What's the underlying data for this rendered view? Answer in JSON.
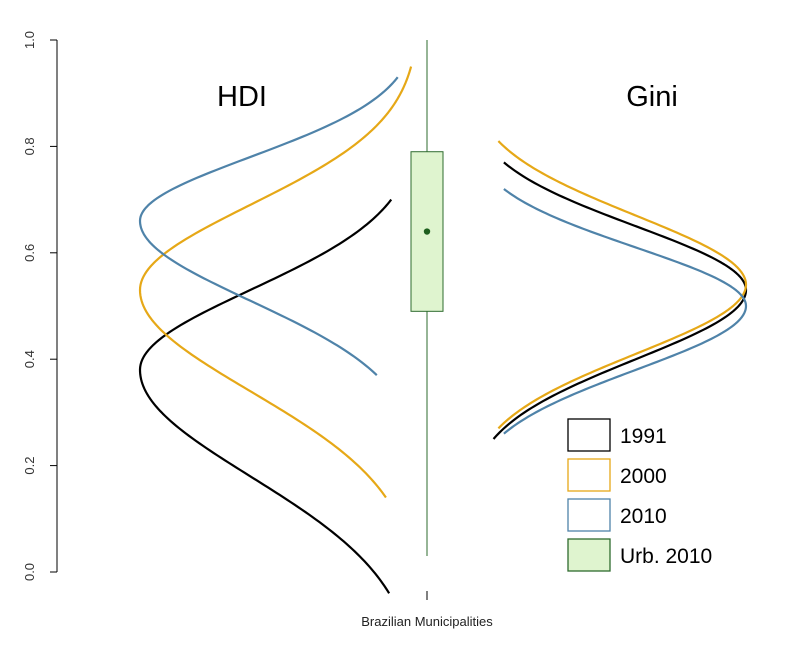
{
  "chart_data": {
    "type": "density-violin",
    "xlabel": "Brazilian Municipalities",
    "ylabel": "",
    "ylim": [
      0.0,
      1.0
    ],
    "yticks": [
      "0.0",
      "0.2",
      "0.4",
      "0.6",
      "0.8",
      "1.0"
    ],
    "panels": [
      {
        "name": "HDI",
        "side": "left",
        "series": [
          {
            "name": "1991",
            "color": "#000000",
            "mode": 0.38,
            "sd_lower": 0.2,
            "sd_upper": 0.15,
            "y_min": -0.04,
            "y_max": 0.7
          },
          {
            "name": "2000",
            "color": "#E6A817",
            "mode": 0.53,
            "sd_lower": 0.19,
            "sd_upper": 0.16,
            "y_min": 0.14,
            "y_max": 0.95
          },
          {
            "name": "2010",
            "color": "#4F83A9",
            "mode": 0.66,
            "sd_lower": 0.15,
            "sd_upper": 0.12,
            "y_min": 0.37,
            "y_max": 0.93
          }
        ]
      },
      {
        "name": "Gini",
        "side": "right",
        "series": [
          {
            "name": "1991",
            "color": "#000000",
            "mode": 0.53,
            "sd_lower": 0.13,
            "sd_upper": 0.12,
            "y_min": 0.25,
            "y_max": 0.77
          },
          {
            "name": "2000",
            "color": "#E6A817",
            "mode": 0.54,
            "sd_lower": 0.13,
            "sd_upper": 0.13,
            "y_min": 0.27,
            "y_max": 0.81
          },
          {
            "name": "2010",
            "color": "#4F83A9",
            "mode": 0.5,
            "sd_lower": 0.12,
            "sd_upper": 0.11,
            "y_min": 0.26,
            "y_max": 0.72
          }
        ]
      }
    ],
    "boxplot": {
      "name": "Urb. 2010",
      "fill": "#DFF4CF",
      "stroke": "#2E6B2E",
      "whisker_low": 0.03,
      "q1": 0.49,
      "median": 0.64,
      "q3": 0.79,
      "whisker_high": 1.0
    },
    "legend": {
      "position": "bottom-right",
      "entries": [
        {
          "label": "1991",
          "color": "#000000",
          "fill": "#FFFFFF"
        },
        {
          "label": "2000",
          "color": "#E6A817",
          "fill": "#FFFFFF"
        },
        {
          "label": "2010",
          "color": "#4F83A9",
          "fill": "#FFFFFF"
        },
        {
          "label": "Urb. 2010",
          "color": "#2E6B2E",
          "fill": "#DFF4CF"
        }
      ]
    },
    "grid": false
  }
}
